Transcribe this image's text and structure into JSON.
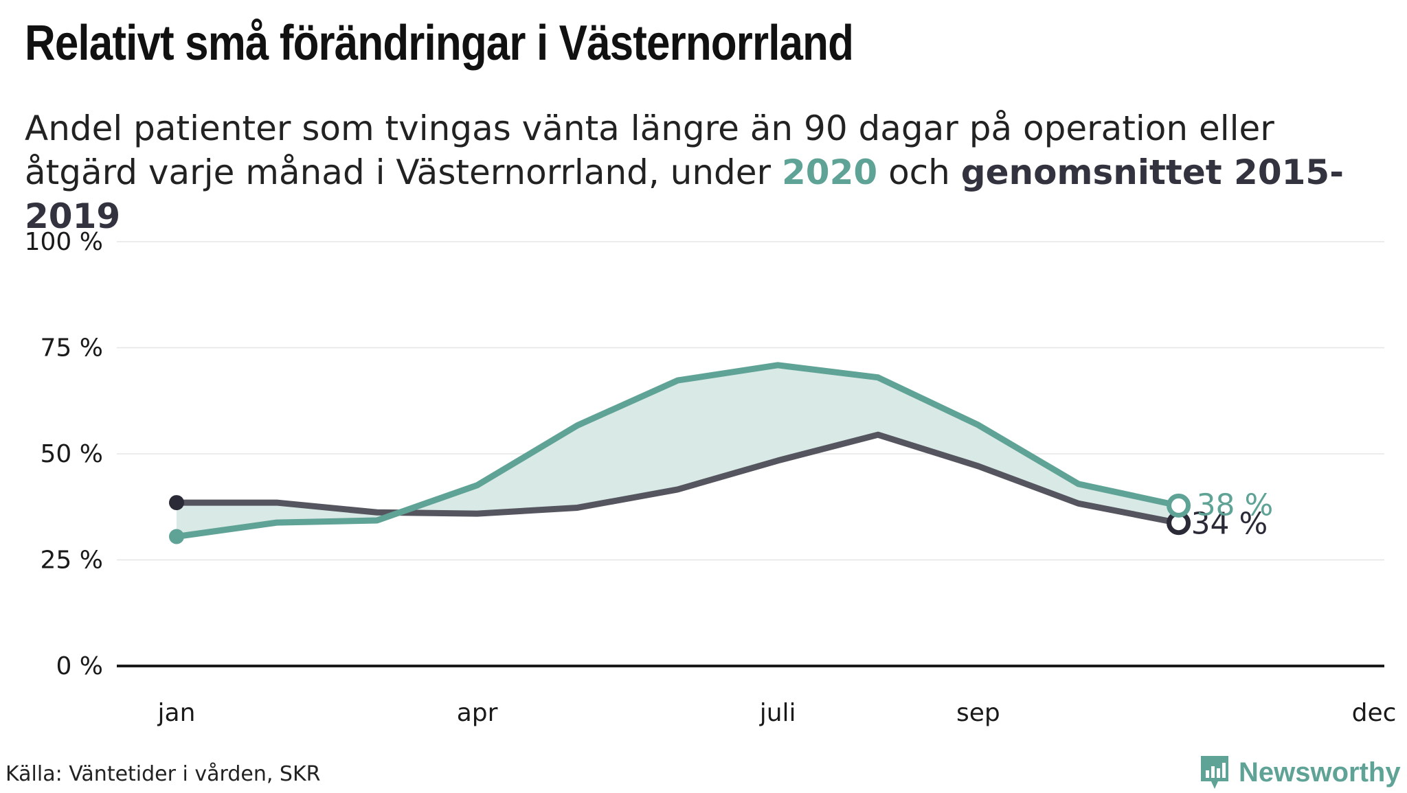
{
  "header": {
    "title": "Relativt små förändringar i Västernorrland",
    "subtitle_prefix": "Andel patienter som tvingas vänta längre än 90 dagar på operation eller åtgärd varje månad i Västernorrland, under",
    "subtitle_highlight_2020": "2020",
    "subtitle_mid": "och",
    "subtitle_highlight_avg": "genomsnittet 2015-2019"
  },
  "footer": {
    "source": "Källa: Väntetider i vården, SKR",
    "brand": "Newsworthy"
  },
  "colors": {
    "series_2020": "#5fa396",
    "series_avg": "#55555f",
    "avg_dot": "#2b2b38",
    "fill": "#d9e9e6",
    "grid": "#e6e6e6",
    "axis": "#1a1a1a"
  },
  "chart_data": {
    "type": "line",
    "x": [
      1,
      2,
      3,
      4,
      5,
      6,
      7,
      8,
      9,
      10,
      11,
      12
    ],
    "xlim": [
      1,
      12.95
    ],
    "x_ticks": [
      {
        "x": 1,
        "label": "jan"
      },
      {
        "x": 4,
        "label": "apr"
      },
      {
        "x": 7,
        "label": "juli"
      },
      {
        "x": 9,
        "label": "sep"
      },
      {
        "x": 12.95,
        "label": "dec"
      }
    ],
    "ylim": [
      0,
      100
    ],
    "y_ticks": [
      0,
      25,
      50,
      75,
      100
    ],
    "y_tick_labels": [
      "0 %",
      "25 %",
      "50 %",
      "75 %",
      "100 %"
    ],
    "fill_between": true,
    "series": [
      {
        "key": "2020",
        "values": [
          30.5,
          33.8,
          34.3,
          42.6,
          56.7,
          67.3,
          70.9,
          68.0,
          56.8,
          42.9,
          37.8,
          null
        ],
        "end_label": "38 %"
      },
      {
        "key": "avg",
        "values": [
          38.5,
          38.5,
          36.2,
          35.9,
          37.3,
          41.6,
          48.4,
          54.5,
          47.1,
          38.3,
          33.7,
          null
        ],
        "end_label": "34 %"
      }
    ]
  }
}
